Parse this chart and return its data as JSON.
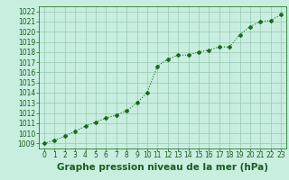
{
  "x": [
    0,
    1,
    2,
    3,
    4,
    5,
    6,
    7,
    8,
    9,
    10,
    11,
    12,
    13,
    14,
    15,
    16,
    17,
    18,
    19,
    20,
    21,
    22,
    23
  ],
  "y": [
    1009.0,
    1009.3,
    1009.7,
    1010.2,
    1010.7,
    1011.1,
    1011.5,
    1011.8,
    1012.2,
    1013.0,
    1014.0,
    1016.6,
    1017.3,
    1017.7,
    1017.7,
    1018.0,
    1018.2,
    1018.5,
    1018.5,
    1019.7,
    1020.5,
    1021.0,
    1021.1,
    1021.7
  ],
  "ylim": [
    1008.5,
    1022.5
  ],
  "xlim": [
    -0.5,
    23.5
  ],
  "yticks": [
    1009,
    1010,
    1011,
    1012,
    1013,
    1014,
    1015,
    1016,
    1017,
    1018,
    1019,
    1020,
    1021,
    1022
  ],
  "xticks": [
    0,
    1,
    2,
    3,
    4,
    5,
    6,
    7,
    8,
    9,
    10,
    11,
    12,
    13,
    14,
    15,
    16,
    17,
    18,
    19,
    20,
    21,
    22,
    23
  ],
  "xtick_labels": [
    "0",
    "1",
    "2",
    "3",
    "4",
    "5",
    "6",
    "7",
    "8",
    "9",
    "10",
    "11",
    "12",
    "13",
    "14",
    "15",
    "16",
    "17",
    "18",
    "19",
    "20",
    "21",
    "22",
    "23"
  ],
  "line_color": "#1a6b1a",
  "marker": "D",
  "marker_size": 2.0,
  "line_width": 0.8,
  "bg_color": "#c8eee0",
  "grid_color": "#96c8b4",
  "xlabel": "Graphe pression niveau de la mer (hPa)",
  "xlabel_color": "#1a5c1a",
  "xlabel_fontsize": 7.5,
  "tick_fontsize": 5.5,
  "tick_color": "#1a5c1a",
  "axis_color": "#2a7a2a"
}
